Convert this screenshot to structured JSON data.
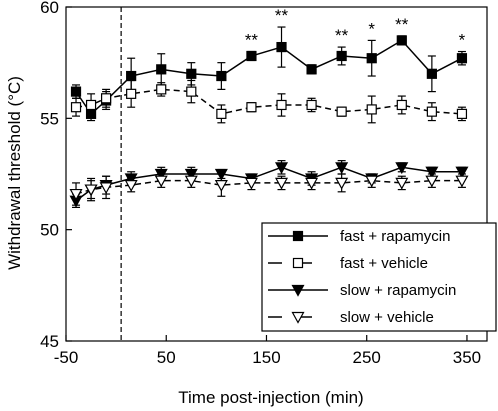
{
  "chart_data": {
    "type": "line",
    "title": "",
    "xlabel": "Time post-injection (min)",
    "ylabel": "Withdrawal threshold (°C)",
    "xlim": [
      -50,
      370
    ],
    "ylim": [
      45,
      60
    ],
    "xticks": [
      -50,
      50,
      150,
      250,
      350
    ],
    "xtick_labels": [
      "-50",
      "50",
      "150",
      "250",
      "350"
    ],
    "yticks": [
      45,
      50,
      55,
      60
    ],
    "ytick_labels": [
      "45",
      "50",
      "55",
      "60"
    ],
    "injection_marker_x": 5,
    "grid": false,
    "legend_position": "bottom-right",
    "series": [
      {
        "name": "fast + rapamycin",
        "marker": "square-filled",
        "line": "solid",
        "color": "#000000",
        "x": [
          -40,
          -25,
          -10,
          15,
          45,
          75,
          105,
          135,
          165,
          195,
          225,
          255,
          285,
          315,
          345
        ],
        "y": [
          56.2,
          55.2,
          55.8,
          56.9,
          57.2,
          57.0,
          56.9,
          57.8,
          58.2,
          57.2,
          57.8,
          57.7,
          58.5,
          57.0,
          57.7
        ],
        "err": [
          0.3,
          0.3,
          0.4,
          0.8,
          0.7,
          0.5,
          0.6,
          0.2,
          0.9,
          0.2,
          0.4,
          0.8,
          0.2,
          0.8,
          0.3
        ]
      },
      {
        "name": "fast + vehicle",
        "marker": "square-open",
        "line": "dashed",
        "color": "#000000",
        "x": [
          -40,
          -25,
          -10,
          15,
          45,
          75,
          105,
          135,
          165,
          195,
          225,
          255,
          285,
          315,
          345
        ],
        "y": [
          55.5,
          55.6,
          55.9,
          56.1,
          56.3,
          56.2,
          55.2,
          55.5,
          55.6,
          55.6,
          55.3,
          55.4,
          55.6,
          55.3,
          55.2
        ],
        "err": [
          0.4,
          0.5,
          0.4,
          0.6,
          0.3,
          0.5,
          0.4,
          0.2,
          0.5,
          0.3,
          0.2,
          0.6,
          0.4,
          0.4,
          0.3
        ]
      },
      {
        "name": "slow + rapamycin",
        "marker": "triangle-down-filled",
        "line": "solid",
        "color": "#000000",
        "x": [
          -40,
          -25,
          -10,
          15,
          45,
          75,
          105,
          135,
          165,
          195,
          225,
          255,
          285,
          315,
          345
        ],
        "y": [
          51.3,
          51.8,
          52.0,
          52.3,
          52.5,
          52.5,
          52.5,
          52.3,
          52.8,
          52.3,
          52.8,
          52.3,
          52.8,
          52.6,
          52.6
        ],
        "err": [
          0.3,
          0.4,
          0.4,
          0.3,
          0.3,
          0.3,
          0.2,
          0.2,
          0.3,
          0.3,
          0.3,
          0.2,
          0.2,
          0.2,
          0.2
        ]
      },
      {
        "name": "slow + vehicle",
        "marker": "triangle-down-open",
        "line": "dashed",
        "color": "#000000",
        "x": [
          -40,
          -25,
          -10,
          15,
          45,
          75,
          105,
          135,
          165,
          195,
          225,
          255,
          285,
          315,
          345
        ],
        "y": [
          51.6,
          51.8,
          51.9,
          52.0,
          52.2,
          52.2,
          52.0,
          52.1,
          52.1,
          52.1,
          52.1,
          52.2,
          52.1,
          52.2,
          52.2
        ],
        "err": [
          0.5,
          0.5,
          0.5,
          0.3,
          0.3,
          0.3,
          0.5,
          0.3,
          0.3,
          0.3,
          0.4,
          0.3,
          0.3,
          0.3,
          0.3
        ]
      }
    ],
    "annotations": [
      {
        "x": 135,
        "text": "**"
      },
      {
        "x": 165,
        "text": "**"
      },
      {
        "x": 225,
        "text": "**"
      },
      {
        "x": 255,
        "text": "*"
      },
      {
        "x": 285,
        "text": "**"
      },
      {
        "x": 345,
        "text": "*"
      }
    ]
  }
}
